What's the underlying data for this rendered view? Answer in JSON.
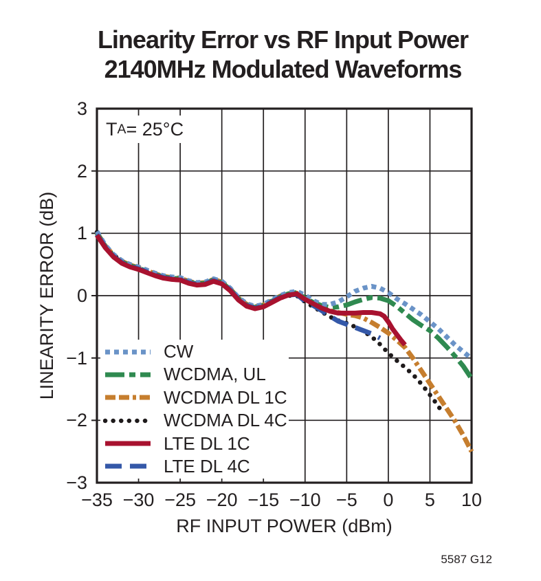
{
  "caption": "5587 G12",
  "annotation": {
    "t": "T",
    "sub": "A",
    "rest": " = 25°C"
  },
  "colors": {
    "axis": "#231F20",
    "grid": "#231F20",
    "background": "#ffffff"
  },
  "chart_data": {
    "type": "line",
    "title_line1": "Linearity Error vs RF Input Power",
    "title_line2": "2140MHz Modulated Waveforms",
    "xlabel": "RF INPUT POWER (dBm)",
    "ylabel": "LINEARITY ERROR (dB)",
    "xlim": [
      -35,
      10
    ],
    "ylim": [
      -3,
      3
    ],
    "x_ticks": [
      -35,
      -30,
      -25,
      -20,
      -15,
      -10,
      -5,
      0,
      5,
      10
    ],
    "x_tick_labels": [
      "−35",
      "−30",
      "−25",
      "−20",
      "−15",
      "−10",
      "−5",
      "0",
      "5",
      "10"
    ],
    "y_ticks": [
      3,
      2,
      1,
      0,
      -1,
      -2,
      -3
    ],
    "y_tick_labels": [
      "3",
      "2",
      "1",
      "0",
      "−1",
      "−2",
      "−3"
    ],
    "grid": true,
    "legend_position": "lower-left-inside",
    "draw_order": [
      "wcdma_dl_4c",
      "wcdma_dl_1c",
      "wcdma_ul",
      "cw",
      "lte_dl_4c",
      "lte_dl_1c"
    ],
    "series": [
      {
        "id": "cw",
        "label": "CW",
        "color": "#6A93C7",
        "dash": "7 6",
        "cap": "butt",
        "width": 7,
        "points": [
          [
            -35,
            1.03
          ],
          [
            -34,
            0.81
          ],
          [
            -33,
            0.66
          ],
          [
            -32,
            0.56
          ],
          [
            -31,
            0.5
          ],
          [
            -30,
            0.46
          ],
          [
            -29,
            0.41
          ],
          [
            -28,
            0.36
          ],
          [
            -27,
            0.32
          ],
          [
            -26,
            0.3
          ],
          [
            -25,
            0.29
          ],
          [
            -24,
            0.24
          ],
          [
            -23,
            0.21
          ],
          [
            -22,
            0.22
          ],
          [
            -21,
            0.27
          ],
          [
            -20,
            0.23
          ],
          [
            -19,
            0.12
          ],
          [
            -18,
            -0.03
          ],
          [
            -17,
            -0.13
          ],
          [
            -16,
            -0.17
          ],
          [
            -15,
            -0.14
          ],
          [
            -14,
            -0.07
          ],
          [
            -13,
            0.0
          ],
          [
            -12,
            0.05
          ],
          [
            -11,
            0.07
          ],
          [
            -10,
            0.01
          ],
          [
            -9,
            -0.08
          ],
          [
            -8,
            -0.14
          ],
          [
            -7,
            -0.14
          ],
          [
            -6,
            -0.1
          ],
          [
            -5,
            -0.02
          ],
          [
            -4,
            0.07
          ],
          [
            -3,
            0.12
          ],
          [
            -2,
            0.15
          ],
          [
            -1,
            0.12
          ],
          [
            0,
            0.05
          ],
          [
            1,
            -0.05
          ],
          [
            2,
            -0.13
          ],
          [
            3,
            -0.22
          ],
          [
            4,
            -0.31
          ],
          [
            5,
            -0.42
          ],
          [
            6,
            -0.53
          ],
          [
            7,
            -0.66
          ],
          [
            8,
            -0.79
          ],
          [
            9,
            -0.9
          ],
          [
            10,
            -1.01
          ]
        ]
      },
      {
        "id": "wcdma_ul",
        "label": "WCDMA, UL",
        "color": "#2F8A50",
        "dash": "28 7 9 7",
        "cap": "butt",
        "width": 7,
        "points": [
          [
            -35,
            1.0
          ],
          [
            -34,
            0.79
          ],
          [
            -33,
            0.64
          ],
          [
            -32,
            0.54
          ],
          [
            -31,
            0.48
          ],
          [
            -30,
            0.44
          ],
          [
            -29,
            0.39
          ],
          [
            -28,
            0.34
          ],
          [
            -27,
            0.3
          ],
          [
            -26,
            0.28
          ],
          [
            -25,
            0.27
          ],
          [
            -24,
            0.22
          ],
          [
            -23,
            0.19
          ],
          [
            -22,
            0.2
          ],
          [
            -21,
            0.25
          ],
          [
            -20,
            0.21
          ],
          [
            -19,
            0.1
          ],
          [
            -18,
            -0.05
          ],
          [
            -17,
            -0.15
          ],
          [
            -16,
            -0.19
          ],
          [
            -15,
            -0.16
          ],
          [
            -14,
            -0.09
          ],
          [
            -13,
            -0.02
          ],
          [
            -12,
            0.03
          ],
          [
            -11,
            0.05
          ],
          [
            -10,
            -0.04
          ],
          [
            -9,
            -0.11
          ],
          [
            -8,
            -0.16
          ],
          [
            -7,
            -0.19
          ],
          [
            -6,
            -0.18
          ],
          [
            -5,
            -0.15
          ],
          [
            -4,
            -0.1
          ],
          [
            -3,
            -0.06
          ],
          [
            -2,
            -0.03
          ],
          [
            -1,
            -0.04
          ],
          [
            0,
            -0.08
          ],
          [
            1,
            -0.17
          ],
          [
            2,
            -0.28
          ],
          [
            3,
            -0.39
          ],
          [
            4,
            -0.48
          ],
          [
            5,
            -0.56
          ],
          [
            6,
            -0.68
          ],
          [
            7,
            -0.82
          ],
          [
            8,
            -0.97
          ],
          [
            9,
            -1.13
          ],
          [
            10,
            -1.33
          ]
        ]
      },
      {
        "id": "wcdma_dl_1c",
        "label": "WCDMA DL 1C",
        "color": "#C67E2E",
        "dash": "15 5 15 5 5 5",
        "cap": "butt",
        "width": 7,
        "points": [
          [
            -35,
            1.01
          ],
          [
            -34,
            0.8
          ],
          [
            -33,
            0.65
          ],
          [
            -32,
            0.55
          ],
          [
            -31,
            0.49
          ],
          [
            -30,
            0.45
          ],
          [
            -29,
            0.4
          ],
          [
            -28,
            0.35
          ],
          [
            -27,
            0.31
          ],
          [
            -26,
            0.29
          ],
          [
            -25,
            0.28
          ],
          [
            -24,
            0.23
          ],
          [
            -23,
            0.2
          ],
          [
            -22,
            0.21
          ],
          [
            -21,
            0.26
          ],
          [
            -20,
            0.22
          ],
          [
            -19,
            0.11
          ],
          [
            -18,
            -0.04
          ],
          [
            -17,
            -0.14
          ],
          [
            -16,
            -0.18
          ],
          [
            -15,
            -0.15
          ],
          [
            -14,
            -0.08
          ],
          [
            -13,
            -0.01
          ],
          [
            -12,
            0.03
          ],
          [
            -11,
            0.04
          ],
          [
            -10,
            -0.05
          ],
          [
            -9,
            -0.13
          ],
          [
            -8,
            -0.19
          ],
          [
            -7,
            -0.24
          ],
          [
            -6,
            -0.27
          ],
          [
            -5,
            -0.3
          ],
          [
            -4,
            -0.32
          ],
          [
            -3,
            -0.36
          ],
          [
            -2,
            -0.43
          ],
          [
            -1,
            -0.51
          ],
          [
            0,
            -0.6
          ],
          [
            1,
            -0.71
          ],
          [
            2,
            -0.83
          ],
          [
            3,
            -1.01
          ],
          [
            4,
            -1.21
          ],
          [
            5,
            -1.41
          ],
          [
            6,
            -1.61
          ],
          [
            7,
            -1.81
          ],
          [
            8,
            -2.01
          ],
          [
            9,
            -2.24
          ],
          [
            10,
            -2.5
          ]
        ]
      },
      {
        "id": "wcdma_dl_4c",
        "label": "WCDMA DL 4C",
        "color": "#1E1A1B",
        "dash": "0.1 11.5",
        "cap": "round",
        "width": 6.5,
        "points": [
          [
            -35,
            1.02
          ],
          [
            -34,
            0.8
          ],
          [
            -33,
            0.65
          ],
          [
            -32,
            0.55
          ],
          [
            -31,
            0.48
          ],
          [
            -30,
            0.44
          ],
          [
            -29,
            0.39
          ],
          [
            -28,
            0.34
          ],
          [
            -27,
            0.3
          ],
          [
            -26,
            0.28
          ],
          [
            -25,
            0.26
          ],
          [
            -24,
            0.21
          ],
          [
            -23,
            0.18
          ],
          [
            -22,
            0.19
          ],
          [
            -21,
            0.24
          ],
          [
            -20,
            0.2
          ],
          [
            -19,
            0.09
          ],
          [
            -18,
            -0.06
          ],
          [
            -17,
            -0.16
          ],
          [
            -16,
            -0.2
          ],
          [
            -15,
            -0.17
          ],
          [
            -14,
            -0.1
          ],
          [
            -13,
            -0.04
          ],
          [
            -12,
            0.0
          ],
          [
            -11,
            0.0
          ],
          [
            -10,
            -0.1
          ],
          [
            -9,
            -0.18
          ],
          [
            -8,
            -0.26
          ],
          [
            -7,
            -0.34
          ],
          [
            -6,
            -0.4
          ],
          [
            -5,
            -0.44
          ],
          [
            -4,
            -0.5
          ],
          [
            -3,
            -0.57
          ],
          [
            -2,
            -0.66
          ],
          [
            -1,
            -0.78
          ],
          [
            0,
            -0.92
          ],
          [
            1,
            -1.04
          ],
          [
            2,
            -1.15
          ],
          [
            3,
            -1.27
          ],
          [
            4,
            -1.42
          ],
          [
            5,
            -1.59
          ],
          [
            6,
            -1.77
          ],
          [
            6.5,
            -1.88
          ]
        ]
      },
      {
        "id": "lte_dl_1c",
        "label": "LTE DL 1C",
        "color": "#A8122F",
        "dash": "",
        "cap": "butt",
        "width": 7,
        "points": [
          [
            -35,
            0.97
          ],
          [
            -34,
            0.77
          ],
          [
            -33,
            0.62
          ],
          [
            -32,
            0.52
          ],
          [
            -31,
            0.46
          ],
          [
            -30,
            0.42
          ],
          [
            -29,
            0.37
          ],
          [
            -28,
            0.32
          ],
          [
            -27,
            0.28
          ],
          [
            -26,
            0.26
          ],
          [
            -25,
            0.25
          ],
          [
            -24,
            0.2
          ],
          [
            -23,
            0.17
          ],
          [
            -22,
            0.18
          ],
          [
            -21,
            0.23
          ],
          [
            -20,
            0.19
          ],
          [
            -19,
            0.08
          ],
          [
            -18,
            -0.07
          ],
          [
            -17,
            -0.17
          ],
          [
            -16,
            -0.21
          ],
          [
            -15,
            -0.18
          ],
          [
            -14,
            -0.11
          ],
          [
            -13,
            -0.04
          ],
          [
            -12,
            0.01
          ],
          [
            -11,
            0.03
          ],
          [
            -10,
            -0.06
          ],
          [
            -9,
            -0.13
          ],
          [
            -8,
            -0.2
          ],
          [
            -7,
            -0.25
          ],
          [
            -6,
            -0.28
          ],
          [
            -5,
            -0.28
          ],
          [
            -4,
            -0.28
          ],
          [
            -3,
            -0.27
          ],
          [
            -2,
            -0.27
          ],
          [
            -1,
            -0.29
          ],
          [
            -0.5,
            -0.33
          ],
          [
            0,
            -0.42
          ],
          [
            0.5,
            -0.53
          ],
          [
            1,
            -0.62
          ],
          [
            1.5,
            -0.71
          ],
          [
            2,
            -0.79
          ]
        ]
      },
      {
        "id": "lte_dl_4c",
        "label": "LTE DL 4C",
        "color": "#3458A8",
        "dash": "24 12",
        "cap": "butt",
        "width": 7,
        "points": [
          [
            -35,
            0.98
          ],
          [
            -34,
            0.78
          ],
          [
            -33,
            0.63
          ],
          [
            -32,
            0.53
          ],
          [
            -31,
            0.47
          ],
          [
            -30,
            0.43
          ],
          [
            -29,
            0.38
          ],
          [
            -28,
            0.33
          ],
          [
            -27,
            0.29
          ],
          [
            -26,
            0.27
          ],
          [
            -25,
            0.26
          ],
          [
            -24,
            0.21
          ],
          [
            -23,
            0.18
          ],
          [
            -22,
            0.19
          ],
          [
            -21,
            0.24
          ],
          [
            -20,
            0.2
          ],
          [
            -19,
            0.09
          ],
          [
            -18,
            -0.06
          ],
          [
            -17,
            -0.16
          ],
          [
            -16,
            -0.2
          ],
          [
            -15,
            -0.17
          ],
          [
            -14,
            -0.1
          ],
          [
            -13,
            -0.03
          ],
          [
            -12,
            0.01
          ],
          [
            -11,
            0.02
          ],
          [
            -10,
            -0.09
          ],
          [
            -9,
            -0.16
          ],
          [
            -8,
            -0.24
          ],
          [
            -7,
            -0.33
          ],
          [
            -6,
            -0.41
          ],
          [
            -5,
            -0.46
          ],
          [
            -4,
            -0.51
          ],
          [
            -3,
            -0.56
          ],
          [
            -2,
            -0.61
          ],
          [
            -1,
            -0.68
          ]
        ]
      }
    ]
  }
}
